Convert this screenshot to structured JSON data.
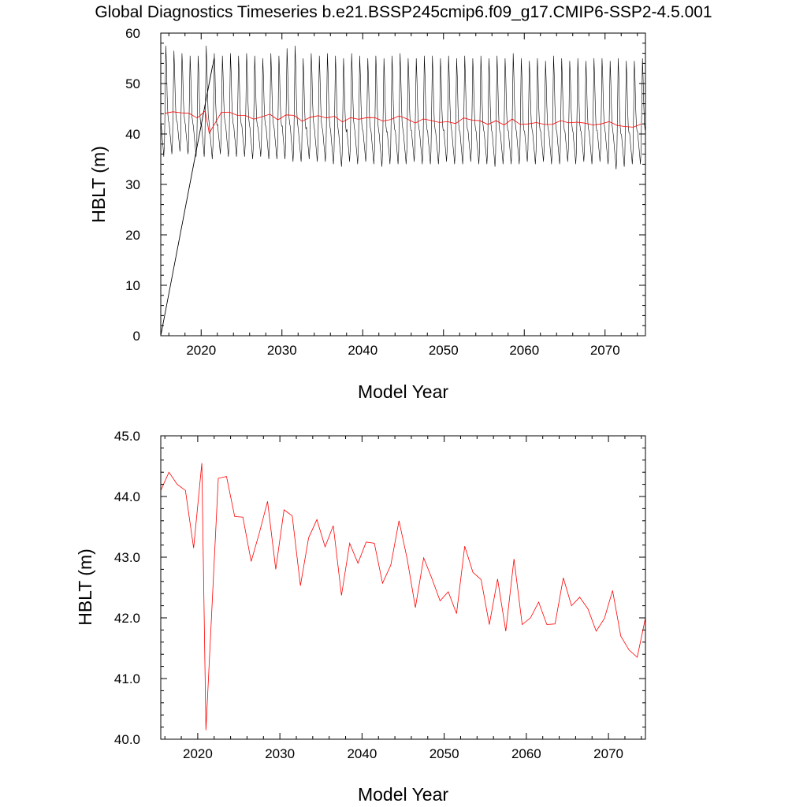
{
  "title": "Global Diagnostics Timeseries b.e21.BSSP245cmip6.f09_g17.CMIP6-SSP2-4.5.001",
  "colors": {
    "monthly": "#000000",
    "annual": "#ff0000",
    "axis": "#000000"
  },
  "chart_data": [
    {
      "type": "line",
      "xlabel": "Model Year",
      "ylabel": "HBLT (m)",
      "xlim": [
        2015,
        2075
      ],
      "ylim": [
        0,
        60
      ],
      "x_ticks": [
        2020,
        2030,
        2040,
        2050,
        2060,
        2070
      ],
      "y_ticks": [
        0,
        10,
        20,
        30,
        40,
        50,
        60
      ],
      "y_tick_labels": [
        "0",
        "10",
        "20",
        "30",
        "40",
        "50",
        "60"
      ],
      "series": [
        {
          "color": "#000000",
          "description": "monthly values; seasonal cycle between annual min and max",
          "seasonal_cycle_minmax": [
            [
              2015,
              35.5,
              57.5
            ],
            [
              2016,
              36.0,
              56.5
            ],
            [
              2017,
              36.5,
              56.0
            ],
            [
              2018,
              36.0,
              55.5
            ],
            [
              2019,
              35.5,
              55.5
            ],
            [
              2020,
              35.5,
              57.5
            ],
            [
              2021,
              35.0,
              56.0
            ],
            [
              2022,
              36.0,
              55.5
            ],
            [
              2023,
              35.5,
              56.0
            ],
            [
              2024,
              35.5,
              55.5
            ],
            [
              2025,
              35.5,
              56.0
            ],
            [
              2026,
              35.0,
              55.5
            ],
            [
              2027,
              35.5,
              55.0
            ],
            [
              2028,
              35.0,
              56.0
            ],
            [
              2029,
              35.0,
              55.5
            ],
            [
              2030,
              35.0,
              57.0
            ],
            [
              2031,
              34.5,
              57.5
            ],
            [
              2032,
              34.5,
              55.0
            ],
            [
              2033,
              35.0,
              56.0
            ],
            [
              2034,
              34.5,
              55.5
            ],
            [
              2035,
              34.5,
              56.0
            ],
            [
              2036,
              34.0,
              55.5
            ],
            [
              2037,
              33.5,
              55.0
            ],
            [
              2038,
              34.5,
              56.0
            ],
            [
              2039,
              34.0,
              55.5
            ],
            [
              2040,
              34.5,
              55.0
            ],
            [
              2041,
              34.0,
              55.5
            ],
            [
              2042,
              33.5,
              55.0
            ],
            [
              2043,
              34.0,
              55.5
            ],
            [
              2044,
              34.0,
              56.0
            ],
            [
              2045,
              34.0,
              55.0
            ],
            [
              2046,
              34.5,
              55.0
            ],
            [
              2047,
              34.0,
              55.5
            ],
            [
              2048,
              34.0,
              55.5
            ],
            [
              2049,
              34.0,
              55.0
            ],
            [
              2050,
              34.5,
              55.5
            ],
            [
              2051,
              34.0,
              55.0
            ],
            [
              2052,
              34.0,
              55.5
            ],
            [
              2053,
              34.5,
              55.0
            ],
            [
              2054,
              34.0,
              55.5
            ],
            [
              2055,
              34.0,
              55.0
            ],
            [
              2056,
              33.5,
              55.5
            ],
            [
              2057,
              34.0,
              55.0
            ],
            [
              2058,
              34.0,
              56.0
            ],
            [
              2059,
              34.0,
              55.0
            ],
            [
              2060,
              34.5,
              54.5
            ],
            [
              2061,
              34.0,
              55.0
            ],
            [
              2062,
              34.5,
              54.5
            ],
            [
              2063,
              34.0,
              55.5
            ],
            [
              2064,
              34.0,
              55.0
            ],
            [
              2065,
              34.5,
              54.5
            ],
            [
              2066,
              34.0,
              55.0
            ],
            [
              2067,
              34.5,
              54.5
            ],
            [
              2068,
              34.0,
              55.0
            ],
            [
              2069,
              34.5,
              55.0
            ],
            [
              2070,
              34.0,
              54.5
            ],
            [
              2071,
              33.0,
              55.0
            ],
            [
              2072,
              33.5,
              54.5
            ],
            [
              2073,
              34.0,
              54.5
            ],
            [
              2074,
              34.0,
              55.0
            ]
          ],
          "artifact_lines": [
            [
              [
                2015.0,
                0.0
              ],
              [
                2021.6,
                55.0
              ]
            ],
            [
              [
                2015.0,
                0.0
              ],
              [
                2021.4,
                53.5
              ]
            ]
          ]
        },
        {
          "color": "#ff0000",
          "description": "annual mean (same values as lower panel)"
        }
      ]
    },
    {
      "type": "line",
      "xlabel": "Model Year",
      "ylabel": "HBLT (m)",
      "xlim": [
        2015.5,
        2074.5
      ],
      "ylim": [
        40.0,
        45.0
      ],
      "x_ticks": [
        2020,
        2030,
        2040,
        2050,
        2060,
        2070
      ],
      "y_ticks": [
        40.0,
        41.0,
        42.0,
        43.0,
        44.0,
        45.0
      ],
      "y_tick_labels": [
        "40.0",
        "41.0",
        "42.0",
        "43.0",
        "44.0",
        "45.0"
      ],
      "series": [
        {
          "color": "#ff0000",
          "x": [
            2015.5,
            2016.5,
            2017.5,
            2018.5,
            2019.5,
            2020.5,
            2021.0,
            2022.5,
            2023.5,
            2024.5,
            2025.5,
            2026.5,
            2027.5,
            2028.5,
            2029.5,
            2030.5,
            2031.5,
            2032.5,
            2033.5,
            2034.5,
            2035.5,
            2036.5,
            2037.5,
            2038.5,
            2039.5,
            2040.5,
            2041.5,
            2042.5,
            2043.5,
            2044.5,
            2045.5,
            2046.5,
            2047.5,
            2048.5,
            2049.5,
            2050.5,
            2051.5,
            2052.5,
            2053.5,
            2054.5,
            2055.5,
            2056.5,
            2057.5,
            2058.5,
            2059.5,
            2060.5,
            2061.5,
            2062.5,
            2063.5,
            2064.5,
            2065.5,
            2066.5,
            2067.5,
            2068.5,
            2069.5,
            2070.5,
            2071.5,
            2072.5,
            2073.5,
            2074.5
          ],
          "y": [
            44.1,
            44.4,
            44.2,
            44.1,
            43.15,
            44.55,
            40.15,
            44.3,
            44.33,
            43.67,
            43.66,
            42.93,
            43.4,
            43.92,
            42.8,
            43.78,
            43.68,
            42.53,
            43.32,
            43.62,
            43.17,
            43.52,
            42.37,
            43.23,
            42.9,
            43.25,
            43.23,
            42.57,
            42.87,
            43.6,
            42.97,
            42.17,
            42.99,
            42.65,
            42.28,
            42.43,
            42.07,
            43.18,
            42.75,
            42.63,
            41.89,
            42.64,
            41.78,
            42.97,
            41.89,
            42.0,
            42.26,
            41.89,
            41.9,
            42.66,
            42.2,
            42.34,
            42.15,
            41.78,
            41.99,
            42.45,
            41.7,
            41.47,
            41.35,
            42.0
          ]
        }
      ]
    }
  ]
}
